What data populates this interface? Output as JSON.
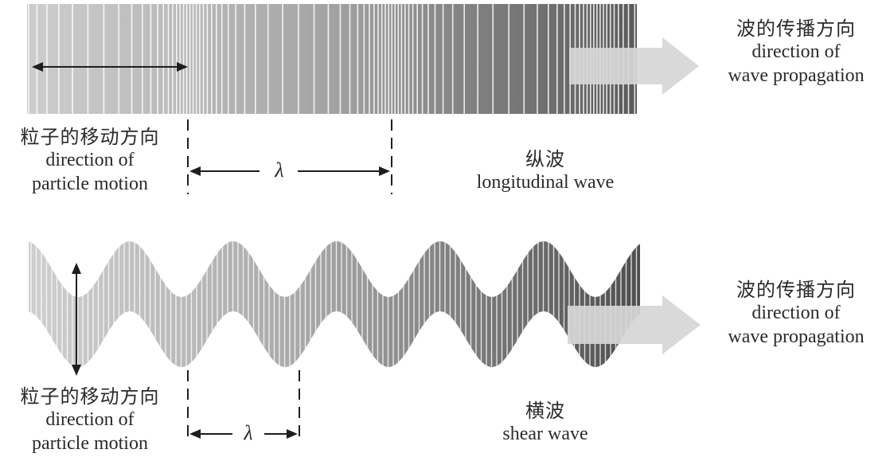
{
  "longitudinal": {
    "name_zh": "纵波",
    "name_en": "longitudinal wave",
    "propagation_zh": "波的传播方向",
    "propagation_en_1": "direction of",
    "propagation_en_2": "wave propagation",
    "particle_zh": "粒子的移动方向",
    "particle_en_1": "direction of",
    "particle_en_2": "particle motion",
    "wavelength_symbol": "λ"
  },
  "shear": {
    "name_zh": "横波",
    "name_en": "shear wave",
    "propagation_zh": "波的传播方向",
    "propagation_en_1": "direction of",
    "propagation_en_2": "wave propagation",
    "particle_zh": "粒子的移动方向",
    "particle_en_1": "direction of",
    "particle_en_2": "particle motion",
    "wavelength_symbol": "λ"
  },
  "colors": {
    "light_gray": "#cfcfcf",
    "dark_gray": "#555555",
    "arrow_fill": "#d6d6d6",
    "line": "#1e1e1e"
  }
}
